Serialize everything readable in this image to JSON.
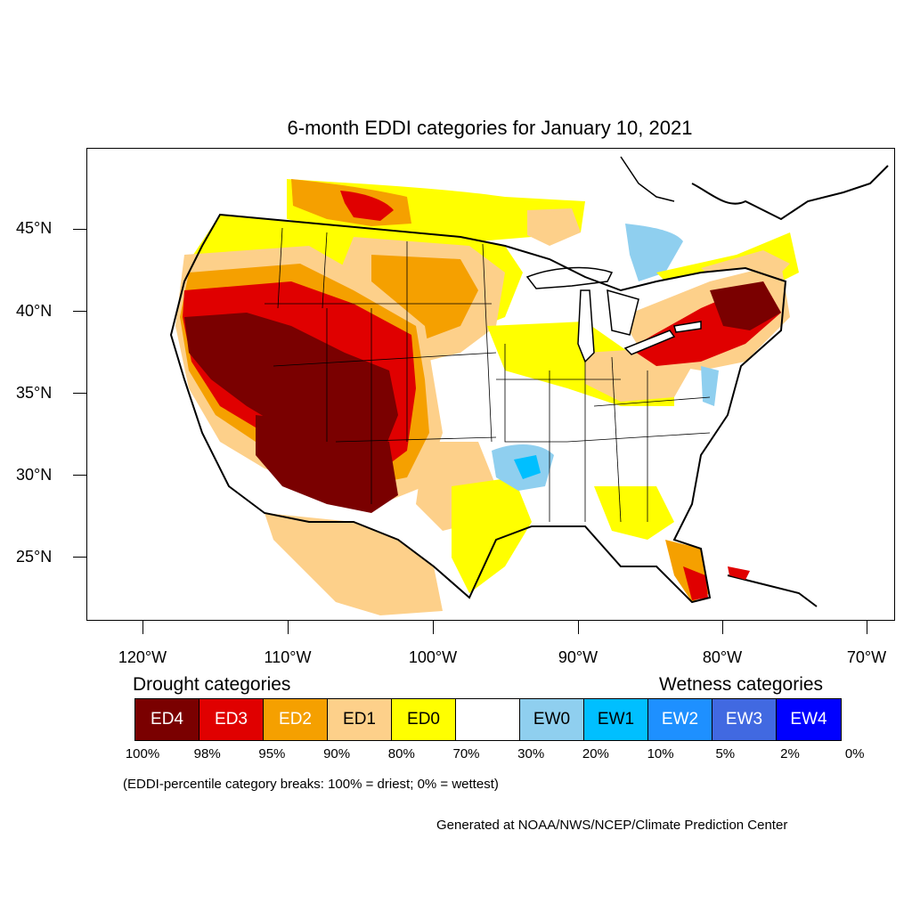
{
  "title": "6-month EDDI categories for January 10, 2021",
  "lat_labels": [
    "45°N",
    "40°N",
    "35°N",
    "30°N",
    "25°N"
  ],
  "lon_labels": [
    "120°W",
    "110°W",
    "100°W",
    "90°W",
    "80°W",
    "70°W"
  ],
  "legend": {
    "drought_title": "Drought categories",
    "wetness_title": "Wetness categories",
    "categories": [
      {
        "label": "ED4",
        "color": "#7a0000",
        "text_color": "#ffffff"
      },
      {
        "label": "ED3",
        "color": "#e00000",
        "text_color": "#ffffff"
      },
      {
        "label": "ED2",
        "color": "#f5a000",
        "text_color": "#ffffff"
      },
      {
        "label": "ED1",
        "color": "#fdd08a",
        "text_color": "#000000"
      },
      {
        "label": "ED0",
        "color": "#ffff00",
        "text_color": "#000000"
      },
      {
        "label": "",
        "color": "#ffffff",
        "text_color": "#000000"
      },
      {
        "label": "EW0",
        "color": "#8fcfef",
        "text_color": "#000000"
      },
      {
        "label": "EW1",
        "color": "#00bfff",
        "text_color": "#000000"
      },
      {
        "label": "EW2",
        "color": "#1e90ff",
        "text_color": "#ffffff"
      },
      {
        "label": "EW3",
        "color": "#4169e1",
        "text_color": "#ffffff"
      },
      {
        "label": "EW4",
        "color": "#0000ff",
        "text_color": "#ffffff"
      }
    ],
    "percentiles": [
      "100%",
      "98%",
      "95%",
      "90%",
      "80%",
      "70%",
      "30%",
      "20%",
      "10%",
      "5%",
      "2%",
      "0%"
    ]
  },
  "note": "(EDDI-percentile category breaks: 100% = driest; 0% = wettest)",
  "credit": "Generated at NOAA/NWS/NCEP/Climate Prediction Center"
}
